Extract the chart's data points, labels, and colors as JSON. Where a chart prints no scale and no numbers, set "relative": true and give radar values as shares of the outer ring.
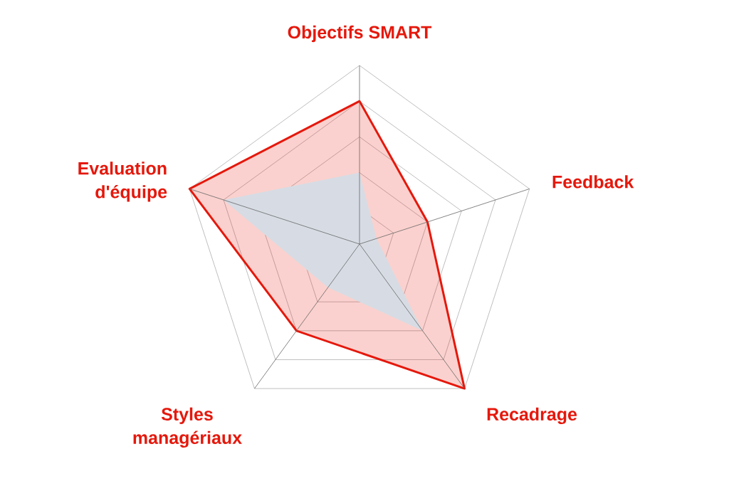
{
  "chart_data": {
    "type": "radar",
    "relative": true,
    "grid": true,
    "categories": [
      "Objectifs SMART",
      "Feedback",
      "Recadrage",
      "Styles managériaux",
      "Evaluation d'équipe"
    ],
    "series": [
      {
        "color": "#e5180c",
        "values": [
          0.8,
          0.4,
          1,
          0.6,
          1
        ]
      },
      {
        "type": "area",
        "color": "#d7dce4",
        "values": [
          0.4,
          0.1,
          0.6,
          0.3,
          0.8
        ]
      }
    ]
  }
}
